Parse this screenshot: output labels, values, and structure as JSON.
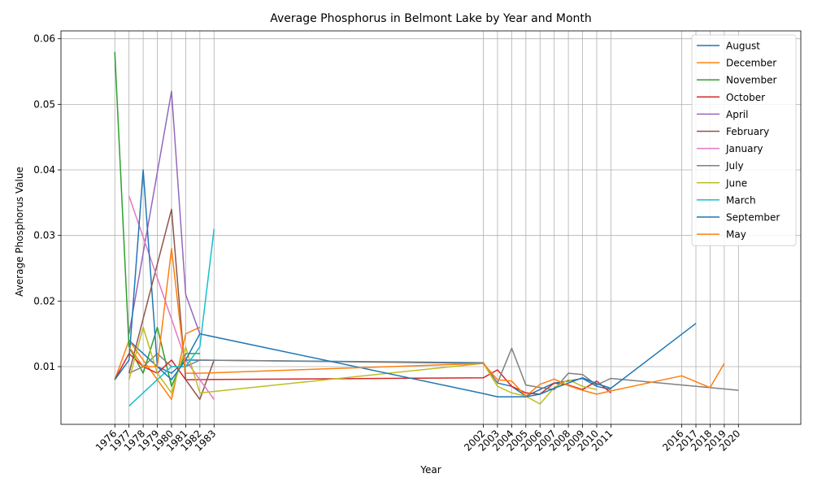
{
  "chart_data": {
    "type": "line",
    "title": "Average Phosphorus in Belmont Lake by Year and Month",
    "xlabel": "Year",
    "ylabel": "Average Phosphorus Value",
    "ylim": [
      0.0012,
      0.0612
    ],
    "xlim": [
      1972.2,
      2024.4
    ],
    "grid": true,
    "legend_position": "top-right",
    "x_ticks": [
      1976,
      1977,
      1978,
      1979,
      1980,
      1981,
      1982,
      1983,
      2002,
      2003,
      2004,
      2005,
      2006,
      2007,
      2008,
      2009,
      2010,
      2011,
      2016,
      2017,
      2018,
      2019,
      2020
    ],
    "y_ticks": [
      0.01,
      0.02,
      0.03,
      0.04,
      0.05,
      0.06
    ],
    "y_tick_labels": [
      "0.01",
      "0.02",
      "0.03",
      "0.04",
      "0.05",
      "0.06"
    ],
    "series": [
      {
        "name": "August",
        "color": "#1f77b4",
        "x": [
          1977,
          1978,
          1979,
          1980,
          1981,
          2002,
          2003,
          2004,
          2005,
          2006,
          2007,
          2008,
          2009,
          2010,
          2011
        ],
        "y": [
          0.014,
          0.012,
          0.01,
          0.009,
          0.011,
          0.0106,
          0.0075,
          0.007,
          0.0055,
          0.0065,
          0.0075,
          0.0078,
          0.0082,
          0.007,
          0.0065
        ]
      },
      {
        "name": "December",
        "color": "#ff7f0e",
        "x": [
          1976,
          1977,
          1978,
          1979,
          1980,
          1981,
          1982
        ],
        "y": [
          0.008,
          0.014,
          0.011,
          0.008,
          0.005,
          0.015,
          0.016
        ]
      },
      {
        "name": "November",
        "color": "#2ca02c",
        "x": [
          1976,
          1977,
          1978,
          1979,
          1980,
          1981,
          1982
        ],
        "y": [
          0.058,
          0.013,
          0.009,
          0.016,
          0.007,
          0.012,
          0.012
        ]
      },
      {
        "name": "October",
        "color": "#d62728",
        "x": [
          1976,
          1977,
          1978,
          1979,
          1980,
          1981,
          2002,
          2003,
          2004,
          2005,
          2006,
          2007,
          2008,
          2009,
          2010,
          2011
        ],
        "y": [
          0.008,
          0.012,
          0.01,
          0.009,
          0.011,
          0.008,
          0.0083,
          0.0095,
          0.007,
          0.006,
          0.0058,
          0.0075,
          0.0072,
          0.0065,
          0.0078,
          0.006
        ]
      },
      {
        "name": "April",
        "color": "#9467bd",
        "x": [
          1977,
          1980,
          1981,
          1982
        ],
        "y": [
          0.015,
          0.052,
          0.021,
          0.015
        ]
      },
      {
        "name": "February",
        "color": "#8c564b",
        "x": [
          1977,
          1980,
          1981,
          1982,
          1983
        ],
        "y": [
          0.009,
          0.034,
          0.008,
          0.005,
          0.011
        ]
      },
      {
        "name": "January",
        "color": "#e377c2",
        "x": [
          1977,
          1981,
          1983
        ],
        "y": [
          0.036,
          0.011,
          0.005
        ]
      },
      {
        "name": "July",
        "color": "#7f7f7f",
        "x": [
          1977,
          1978,
          1979,
          1980,
          1981,
          1982,
          2002,
          2003,
          2004,
          2005,
          2006,
          2007,
          2008,
          2009,
          2010,
          2011,
          2020
        ],
        "y": [
          0.009,
          0.01,
          0.012,
          0.01,
          0.01,
          0.011,
          0.0105,
          0.0075,
          0.0128,
          0.0072,
          0.0068,
          0.0065,
          0.009,
          0.0088,
          0.0072,
          0.0082,
          0.0064
        ]
      },
      {
        "name": "June",
        "color": "#bcbd22",
        "x": [
          1977,
          1978,
          1979,
          1980,
          1981,
          1982,
          2002,
          2003,
          2004,
          2005,
          2006,
          2007,
          2008,
          2009,
          2010
        ],
        "y": [
          0.008,
          0.016,
          0.009,
          0.006,
          0.013,
          0.006,
          0.0105,
          0.007,
          0.006,
          0.0055,
          0.0043,
          0.0068,
          0.008,
          0.007,
          0.0065
        ]
      },
      {
        "name": "March",
        "color": "#17becf",
        "x": [
          1977,
          1979,
          1980,
          1981,
          1982,
          1983
        ],
        "y": [
          0.004,
          0.008,
          0.01,
          0.01,
          0.013,
          0.031
        ]
      },
      {
        "name": "September",
        "color": "#1f77b4",
        "x": [
          1976,
          1977,
          1978,
          1979,
          1980,
          1981,
          1982,
          2002,
          2003,
          2004,
          2005,
          2006,
          2007,
          2008,
          2009,
          2010,
          2011,
          2017
        ],
        "y": [
          0.008,
          0.011,
          0.04,
          0.01,
          0.008,
          0.011,
          0.015,
          0.0059,
          0.0054,
          0.0054,
          0.0054,
          0.0058,
          0.0067,
          0.0075,
          0.0083,
          0.0074,
          0.0067,
          0.0166
        ]
      },
      {
        "name": "May",
        "color": "#ff7f0e",
        "x": [
          1977,
          1978,
          1979,
          1980,
          1981,
          1982,
          2002,
          2003,
          2004,
          2005,
          2006,
          2007,
          2008,
          2009,
          2010,
          2011,
          2016,
          2018,
          2019
        ],
        "y": [
          0.013,
          0.01,
          0.01,
          0.028,
          0.009,
          0.009,
          0.0105,
          0.008,
          0.0078,
          0.0055,
          0.0073,
          0.0081,
          0.0071,
          0.0064,
          0.0058,
          0.0063,
          0.0086,
          0.0068,
          0.0105
        ]
      }
    ]
  }
}
